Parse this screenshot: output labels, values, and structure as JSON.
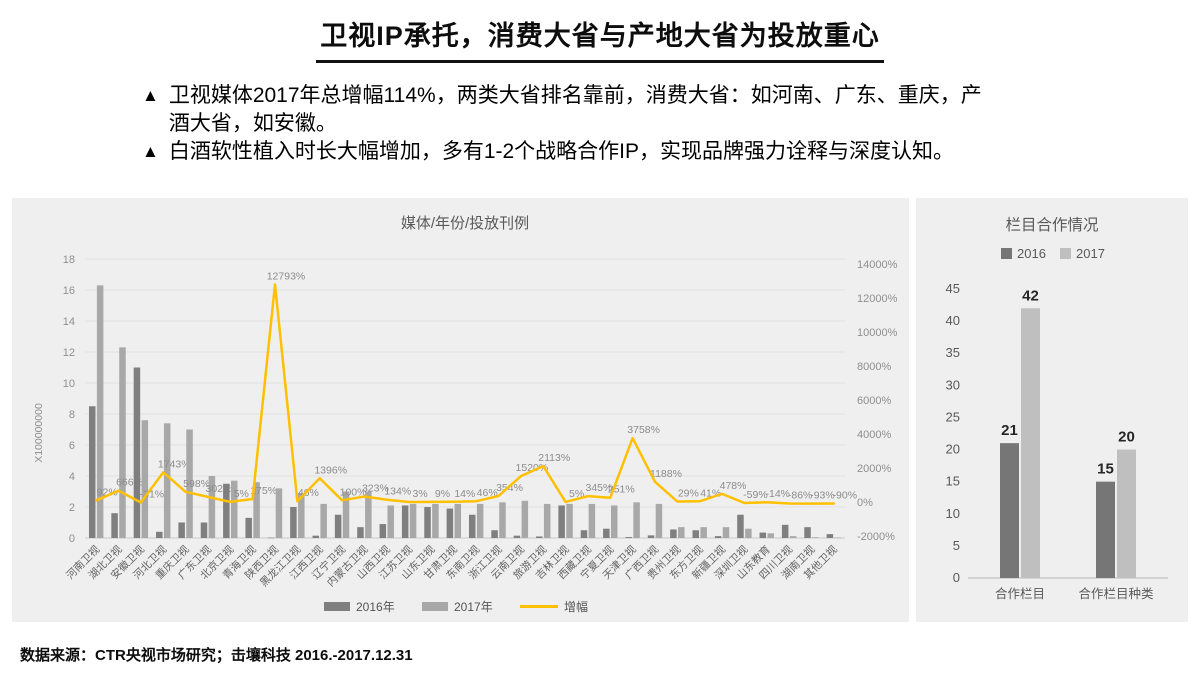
{
  "slide": {
    "title": "卫视IP承托，消费大省与产地大省为投放重心",
    "bullet_marker": "▲",
    "bullets": [
      {
        "lines": [
          "卫视媒体2017年总增幅114%，两类大省排名靠前，消费大省：如河南、广东、重庆，产",
          "酒大省，如安徽。"
        ]
      },
      {
        "lines": [
          "白酒软性植入时长大幅增加，多有1-2个战略合作IP，实现品牌强力诠释与深度认知。"
        ]
      }
    ],
    "footer": "数据来源：CTR央视市场研究；击壤科技 2016.-2017.12.31"
  },
  "chart_data": [
    {
      "type": "bar+line combo",
      "title": "媒体/年份/投放刊例",
      "legend_position": "bottom",
      "categories": [
        "河南卫视",
        "湖北卫视",
        "安徽卫视",
        "河北卫视",
        "重庆卫视",
        "广东卫视",
        "北京卫视",
        "青海卫视",
        "陕西卫视",
        "黑龙江卫视",
        "江西卫视",
        "辽宁卫视",
        "内蒙古卫视",
        "山西卫视",
        "江苏卫视",
        "山东卫视",
        "甘肃卫视",
        "东南卫视",
        "浙江卫视",
        "云南卫视",
        "旅游卫视",
        "吉林卫视",
        "西藏卫视",
        "宁夏卫视",
        "天津卫视",
        "广西卫视",
        "贵州卫视",
        "东方卫视",
        "新疆卫视",
        "深圳卫视",
        "山东教育",
        "四川卫视",
        "湖南卫视",
        "其他卫视"
      ],
      "series": [
        {
          "name": "2016年",
          "type": "bar",
          "color": "#7f7f7f",
          "values": [
            8.5,
            1.6,
            11.0,
            0.4,
            1.0,
            1.0,
            3.5,
            1.3,
            0.025,
            2.0,
            0.15,
            1.5,
            0.7,
            0.9,
            2.1,
            2.0,
            1.9,
            1.5,
            0.5,
            0.15,
            0.1,
            2.1,
            0.5,
            0.6,
            0.06,
            0.17,
            0.55,
            0.5,
            0.12,
            1.5,
            0.35,
            0.85,
            0.7,
            0.25
          ]
        },
        {
          "name": "2017年",
          "type": "bar",
          "color": "#a8a8a8",
          "values": [
            16.3,
            12.3,
            7.6,
            7.4,
            7.0,
            4.0,
            3.7,
            3.6,
            3.2,
            2.9,
            2.2,
            3.0,
            3.0,
            2.1,
            2.2,
            2.2,
            2.2,
            2.2,
            2.3,
            2.4,
            2.2,
            2.2,
            2.2,
            2.1,
            2.3,
            2.2,
            0.7,
            0.7,
            0.7,
            0.6,
            0.3,
            0.12,
            0.05,
            0.03
          ]
        },
        {
          "name": "增幅",
          "type": "line",
          "color": "#ffc000",
          "unit": "%",
          "values": [
            92,
            666,
            -31,
            1743,
            598,
            302,
            5,
            175,
            12793,
            46,
            1396,
            100,
            323,
            134,
            3,
            9,
            14,
            46,
            354,
            1520,
            2113,
            5,
            345,
            251,
            3758,
            1188,
            29,
            41,
            478,
            -59,
            -14,
            -86,
            -93,
            -90
          ]
        }
      ],
      "left_axis": {
        "label": "X100000000",
        "min": 0,
        "max": 18,
        "step": 2
      },
      "right_axis": {
        "min": -2000,
        "max": 14000,
        "step": 2000,
        "suffix": "%"
      },
      "grid": true
    },
    {
      "type": "bar",
      "title": "栏目合作情况",
      "legend_position": "top",
      "categories": [
        "合作栏目",
        "合作栏目种类"
      ],
      "series": [
        {
          "name": "2016",
          "color": "#767676",
          "values": [
            21,
            15
          ]
        },
        {
          "name": "2017",
          "color": "#bfbfbf",
          "values": [
            42,
            20
          ]
        }
      ],
      "ylabel": "",
      "xlabel": "",
      "ylim": [
        0,
        45
      ],
      "ystep": 5,
      "grid": false,
      "data_labels": true
    }
  ],
  "colors": {
    "panel_bg": "#efeff0",
    "gridline": "#e2e2e3",
    "axis_text": "#8f8f8f",
    "category_text": "#636363",
    "chart_title": "#595959",
    "growth_label": "#8c8c8c",
    "value_label": "#262626"
  }
}
